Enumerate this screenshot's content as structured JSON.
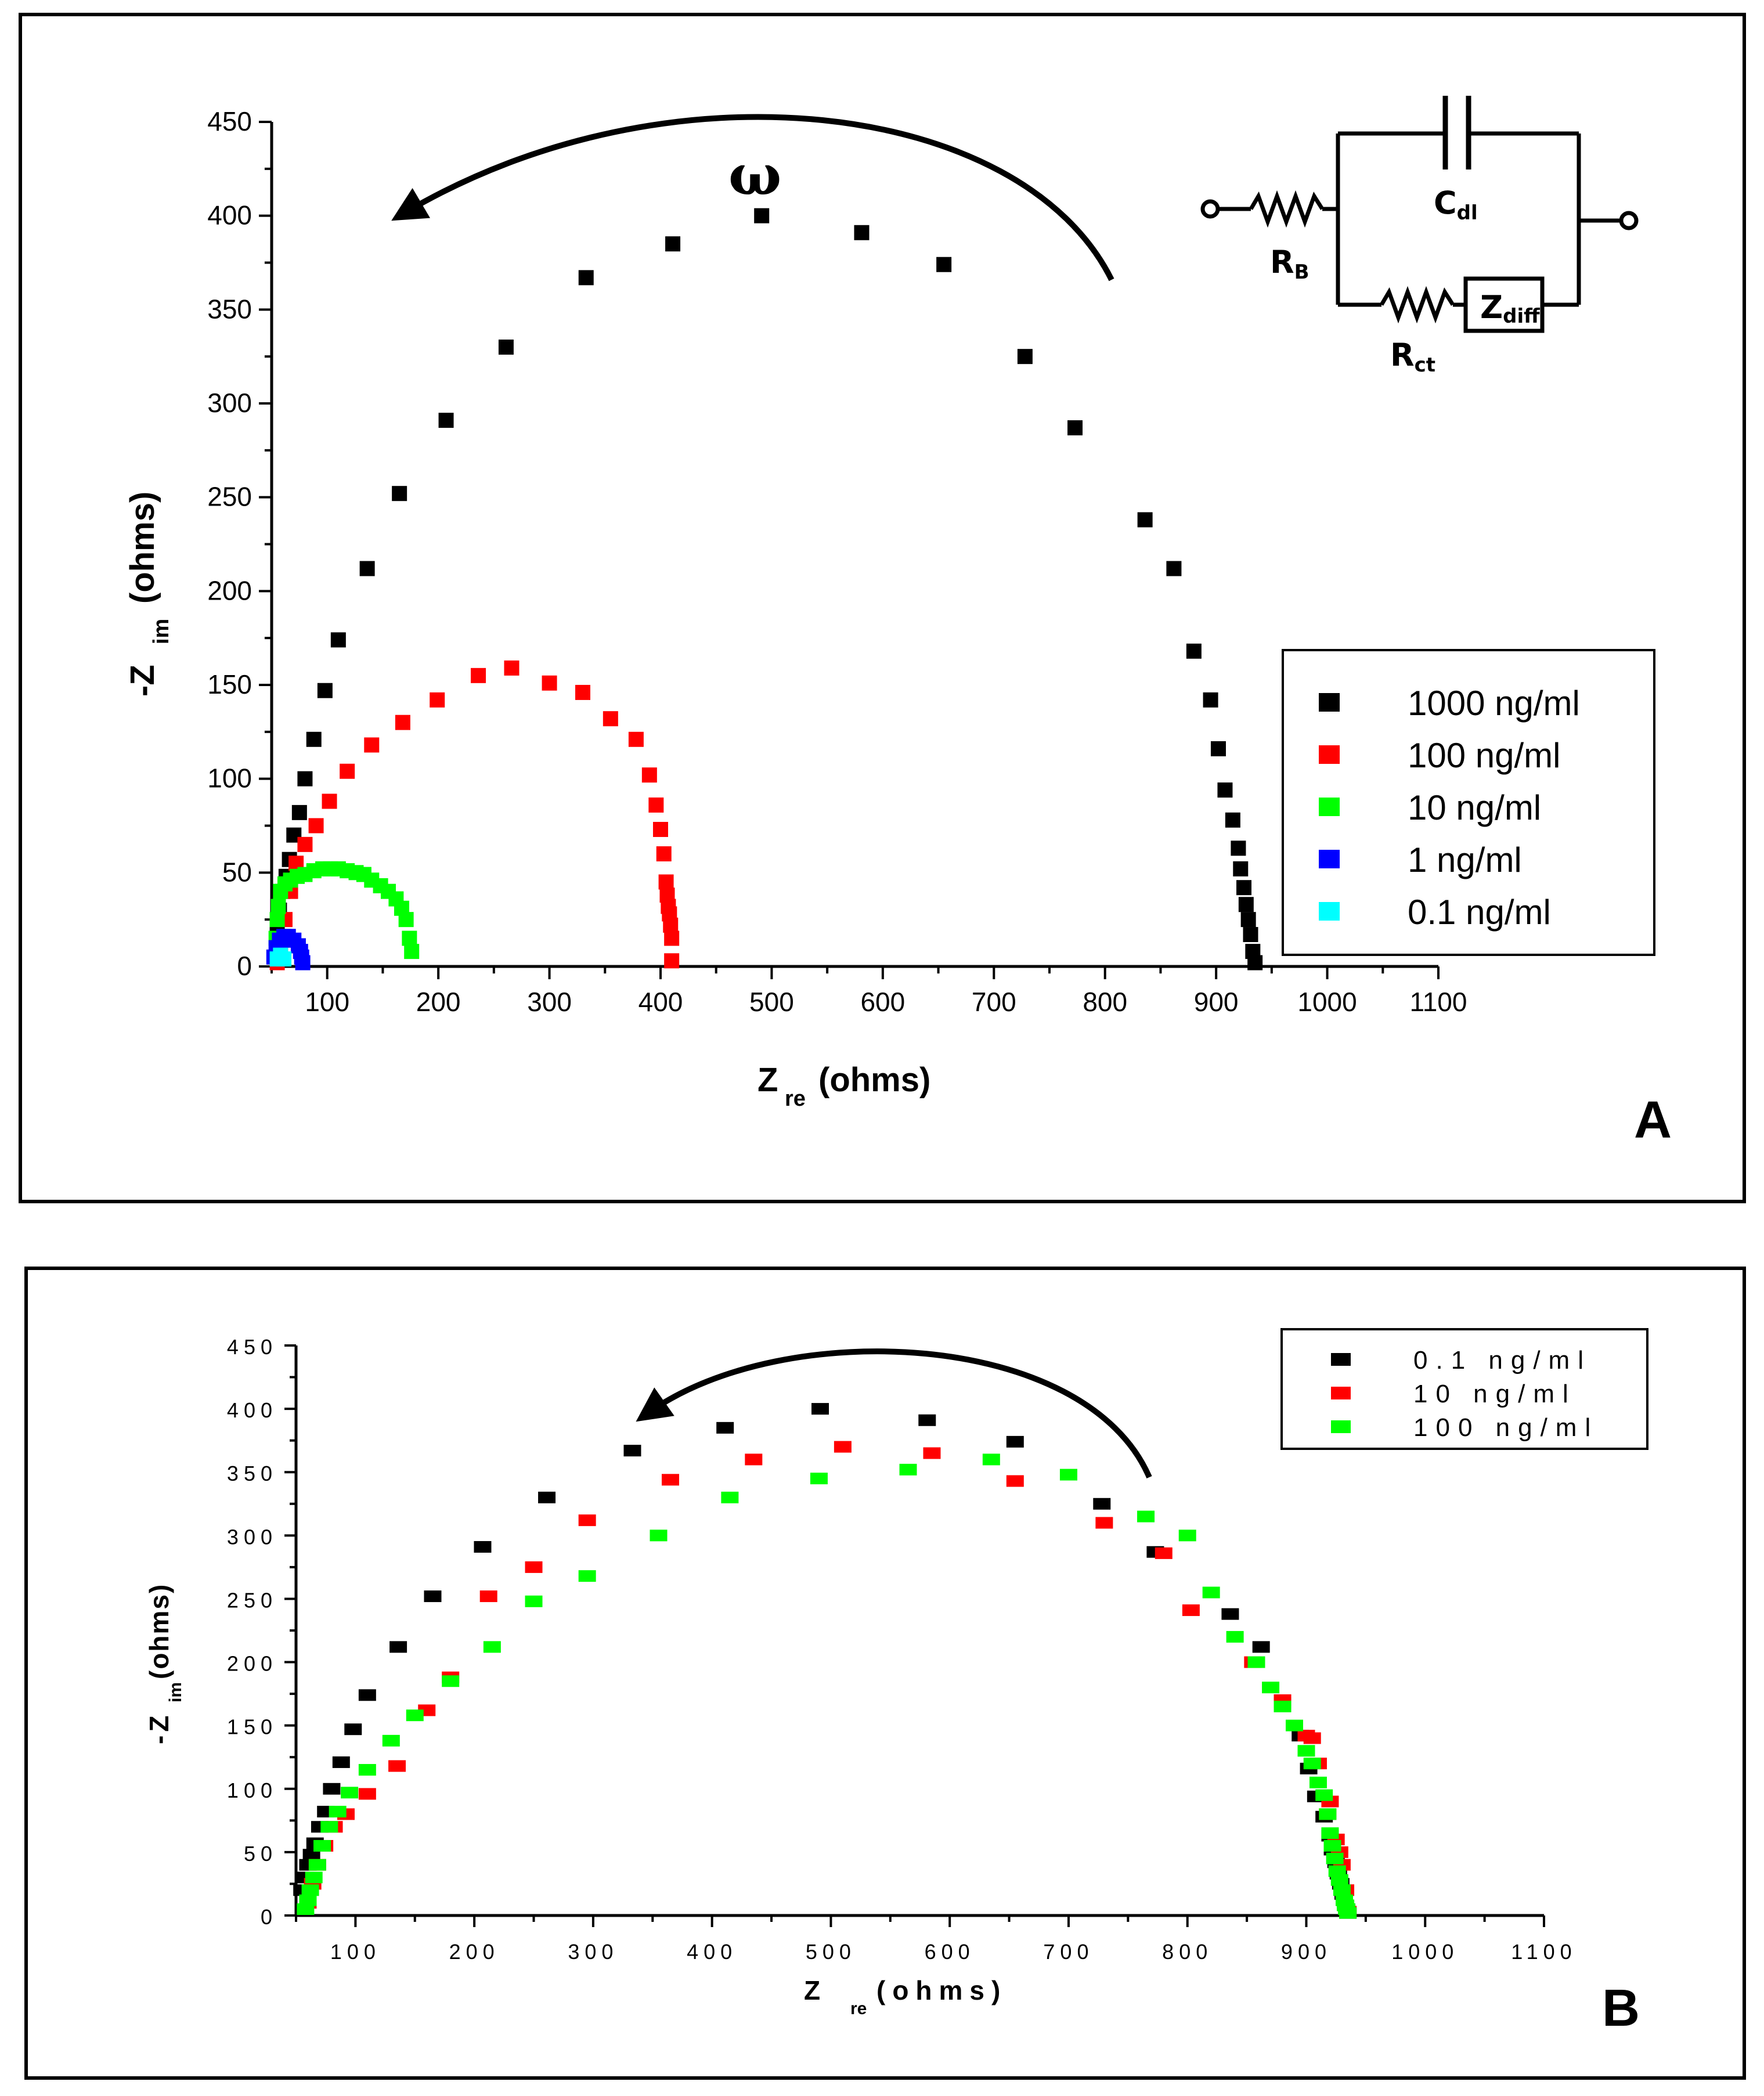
{
  "chart_data": [
    {
      "panel": "A",
      "type": "scatter",
      "xlabel": "Z",
      "xlabel_sub": "re",
      "xlabel_unit": "(ohms)",
      "ylabel": "-Z",
      "ylabel_sub": "im",
      "ylabel_unit": "(ohms)",
      "xlim": [
        50,
        1100
      ],
      "ylim": [
        0,
        450
      ],
      "xticks": [
        100,
        200,
        300,
        400,
        500,
        600,
        700,
        800,
        900,
        1000,
        1100
      ],
      "yticks": [
        0,
        50,
        100,
        150,
        200,
        250,
        300,
        350,
        400,
        450
      ],
      "omega_label": "ω",
      "legend_position": "right",
      "circuit": {
        "rb": "R",
        "rb_sub": "B",
        "cdl": "C",
        "cdl_sub": "dl",
        "rct": "R",
        "rct_sub": "ct",
        "zdiff": "Z",
        "zdiff_sub": "diff"
      },
      "series": [
        {
          "name": "1000 ng/ml",
          "color": "#000000",
          "x": [
            55,
            57,
            60,
            63,
            66,
            70,
            75,
            80,
            88,
            98,
            110,
            136,
            165,
            207,
            261,
            333,
            411,
            491,
            581,
            655,
            728,
            773,
            836,
            862,
            880,
            895,
            902,
            908,
            915,
            920,
            922,
            925,
            927,
            929,
            931,
            933,
            935
          ],
          "y": [
            20,
            30,
            40,
            48,
            57,
            70,
            82,
            100,
            121,
            147,
            174,
            212,
            252,
            291,
            330,
            367,
            385,
            400,
            391,
            374,
            325,
            287,
            238,
            212,
            168,
            142,
            116,
            94,
            78,
            63,
            52,
            42,
            33,
            25,
            17,
            8,
            2
          ]
        },
        {
          "name": "100 ng/ml",
          "color": "#ff0000",
          "x": [
            55,
            58,
            62,
            67,
            72,
            80,
            90,
            102,
            118,
            140,
            168,
            199,
            236,
            266,
            300,
            330,
            355,
            378,
            390,
            396,
            400,
            403,
            405,
            407,
            409,
            410
          ],
          "y": [
            2,
            10,
            25,
            40,
            55,
            65,
            75,
            88,
            104,
            118,
            130,
            142,
            155,
            159,
            151,
            146,
            132,
            121,
            102,
            86,
            73,
            60,
            45,
            32,
            22,
            3
          ],
          "x_extra": [
            406,
            408,
            410
          ],
          "y_extra": [
            38,
            28,
            15
          ]
        },
        {
          "name": "10 ng/ml",
          "color": "#00ff00",
          "x": [
            54,
            55,
            56,
            58,
            62,
            67,
            73,
            80,
            88,
            96,
            103,
            110,
            118,
            126,
            133,
            140,
            148,
            155,
            162,
            167,
            171,
            174,
            176
          ],
          "y": [
            15,
            25,
            32,
            40,
            44,
            46,
            48,
            49,
            51,
            52,
            52,
            52,
            51,
            50,
            49,
            46,
            43,
            40,
            36,
            31,
            25,
            15,
            8
          ]
        },
        {
          "name": "1 ng/ml",
          "color": "#0000ff",
          "x": [
            52,
            54,
            57,
            61,
            65,
            70,
            74,
            76,
            77,
            78
          ],
          "y": [
            5,
            10,
            14,
            16,
            16,
            14,
            11,
            8,
            5,
            2
          ]
        },
        {
          "name": "0.1 ng/ml",
          "color": "#00ffff",
          "x": [
            55,
            58,
            61
          ],
          "y": [
            4,
            6,
            4
          ]
        }
      ]
    },
    {
      "panel": "B",
      "type": "scatter",
      "xlabel": "Z",
      "xlabel_sub": "re",
      "xlabel_unit": "(ohms)",
      "ylabel": "-Z",
      "ylabel_sub": "im",
      "ylabel_unit": "(ohms)",
      "xlim": [
        50,
        1100
      ],
      "ylim": [
        0,
        450
      ],
      "xticks": [
        100,
        200,
        300,
        400,
        500,
        600,
        700,
        800,
        900,
        1000,
        1100
      ],
      "yticks": [
        0,
        50,
        100,
        150,
        200,
        250,
        300,
        350,
        400,
        450
      ],
      "legend_position": "top-right",
      "series": [
        {
          "name": "0.1 ng/ml",
          "color": "#000000",
          "x": [
            55,
            58,
            60,
            63,
            66,
            70,
            75,
            80,
            88,
            98,
            110,
            136,
            165,
            207,
            261,
            333,
            411,
            491,
            581,
            655,
            728,
            773,
            836,
            862,
            880,
            895,
            902,
            908,
            915,
            920,
            922,
            925,
            927,
            929,
            931,
            933,
            935
          ],
          "y": [
            20,
            30,
            40,
            48,
            57,
            70,
            82,
            100,
            121,
            147,
            174,
            212,
            252,
            291,
            330,
            367,
            385,
            400,
            391,
            374,
            325,
            287,
            238,
            212,
            168,
            142,
            116,
            94,
            78,
            63,
            52,
            42,
            33,
            25,
            17,
            8,
            2
          ]
        },
        {
          "name": "10 ng/ml",
          "color": "#ff0000",
          "x": [
            60,
            64,
            68,
            74,
            82,
            92,
            110,
            135,
            160,
            180,
            212,
            250,
            295,
            365,
            435,
            510,
            585,
            655,
            730,
            780,
            803,
            855,
            880,
            900,
            910,
            918,
            925,
            930,
            933,
            935
          ],
          "y": [
            10,
            25,
            40,
            55,
            70,
            80,
            96,
            118,
            162,
            188,
            252,
            275,
            312,
            344,
            360,
            370,
            365,
            343,
            310,
            286,
            241,
            200,
            170,
            142,
            120,
            80,
            60,
            40,
            20,
            3
          ],
          "x_extra": [
            905,
            920,
            928
          ],
          "y_extra": [
            140,
            90,
            50
          ]
        },
        {
          "name": "100 ng/ml",
          "color": "#00ff00",
          "x": [
            58,
            60,
            62,
            65,
            68,
            72,
            78,
            85,
            95,
            110,
            130,
            150,
            180,
            215,
            250,
            295,
            355,
            415,
            490,
            565,
            635,
            700,
            765,
            800,
            820,
            840,
            858,
            870,
            880,
            890,
            900,
            905,
            910,
            915,
            918,
            920,
            922,
            924,
            926,
            928,
            930,
            932,
            933,
            934,
            935
          ],
          "y": [
            5,
            12,
            20,
            30,
            40,
            55,
            70,
            82,
            97,
            115,
            138,
            158,
            185,
            212,
            248,
            268,
            300,
            330,
            345,
            352,
            360,
            348,
            315,
            300,
            255,
            220,
            200,
            180,
            165,
            150,
            130,
            120,
            105,
            95,
            80,
            65,
            55,
            45,
            35,
            28,
            20,
            12,
            8,
            5,
            2
          ]
        }
      ]
    }
  ],
  "panel_labels": {
    "a": "A",
    "b": "B"
  }
}
